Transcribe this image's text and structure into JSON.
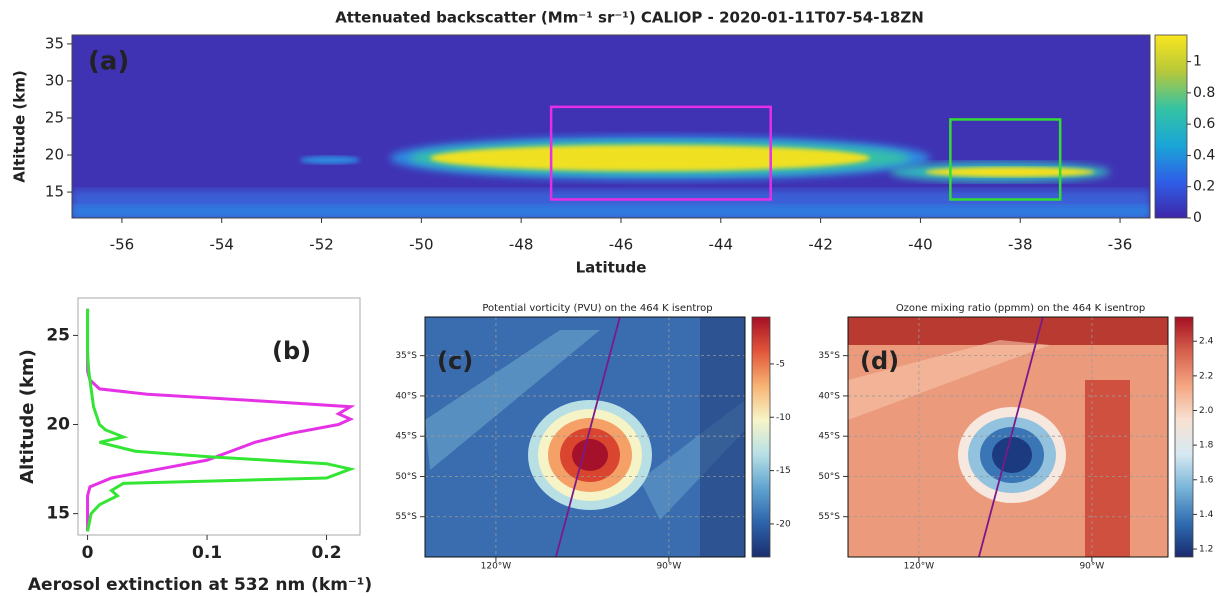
{
  "chart_data": [
    {
      "type": "heatmap",
      "label": "(a)",
      "title": "Attenuated backscatter (Mm⁻¹ sr⁻¹) CALIOP - 2020-01-11T07-54-18ZN",
      "xlabel": "Latitude",
      "ylabel": "Altitude (km)",
      "xlim": [
        -57,
        -35.4
      ],
      "xticks": [
        -56,
        -54,
        -52,
        -50,
        -48,
        -46,
        -44,
        -42,
        -40,
        -38,
        -36
      ],
      "ylim": [
        11.5,
        36.2
      ],
      "yticks": [
        15,
        20,
        25,
        30,
        35
      ],
      "colorbar": {
        "lim": [
          0,
          1.17
        ],
        "ticks": [
          0,
          0.2,
          0.4,
          0.6,
          0.8,
          1
        ],
        "colors": [
          "#3e26a8",
          "#2f5fe8",
          "#1aa6d6",
          "#35c3a3",
          "#b7c83a",
          "#f9e61f"
        ]
      },
      "boxes": [
        {
          "color": "#e62ee6",
          "xlim": [
            -47.4,
            -43
          ],
          "ylim": [
            14,
            26.5
          ]
        },
        {
          "color": "#33dd33",
          "xlim": [
            -39.4,
            -37.2
          ],
          "ylim": [
            14,
            24.8
          ]
        }
      ]
    },
    {
      "type": "line",
      "label": "(b)",
      "xlabel": "Aerosol extinction at 532 nm (km⁻¹)",
      "ylabel": "Altitude (km)",
      "xlim": [
        -0.008,
        0.228
      ],
      "xticks": [
        0,
        0.1,
        0.2
      ],
      "ylim": [
        13.8,
        27.1
      ],
      "yticks": [
        15,
        20,
        25
      ],
      "series": [
        {
          "color": "#e632e6",
          "y": [
            14,
            16,
            16.5,
            17,
            17.5,
            18,
            18.5,
            19,
            19.5,
            20,
            20.3,
            20.6,
            21,
            21.3,
            21.7,
            22,
            22.5,
            23,
            26.5
          ],
          "values": [
            0,
            0,
            0.002,
            0.02,
            0.06,
            0.1,
            0.12,
            0.14,
            0.17,
            0.21,
            0.22,
            0.21,
            0.22,
            0.15,
            0.05,
            0.01,
            0.002,
            0,
            0
          ]
        },
        {
          "color": "#33e633",
          "y": [
            14,
            15,
            15.5,
            16,
            16.3,
            16.7,
            17,
            17.5,
            17.8,
            18.2,
            18.5,
            19,
            19.3,
            19.7,
            20,
            21,
            22,
            23,
            24,
            26.5
          ],
          "values": [
            0,
            0.003,
            0.01,
            0.025,
            0.02,
            0.03,
            0.2,
            0.22,
            0.2,
            0.1,
            0.04,
            0.01,
            0.03,
            0.015,
            0.01,
            0.005,
            0.003,
            0.001,
            0,
            0
          ]
        }
      ]
    },
    {
      "type": "map",
      "label": "(c)",
      "title": "Potential vorticity (PVU) on the 464 K isentrop",
      "grid": true,
      "xlim": [
        -132.3,
        -76.8
      ],
      "xticks": [
        {
          "value": -120,
          "label": "120°W"
        },
        {
          "value": -90,
          "label": "90°W"
        }
      ],
      "ylim": [
        -60,
        -30.2
      ],
      "yticks": [
        {
          "value": -35,
          "label": "35°S"
        },
        {
          "value": -40,
          "label": "40°S"
        },
        {
          "value": -45,
          "label": "45°S"
        },
        {
          "value": -50,
          "label": "50°S"
        },
        {
          "value": -55,
          "label": "55°S"
        }
      ],
      "colorbar": {
        "lim": [
          -23.1,
          -0.6
        ],
        "ticks": [
          -5,
          -10,
          -15,
          -20
        ],
        "colors": [
          "#1a2e6e",
          "#2e63aa",
          "#5fa3cf",
          "#b8e0e6",
          "#f7f5c8",
          "#f7b273",
          "#e2563a",
          "#a50f26"
        ]
      },
      "track": {
        "color": "#7a1a8a",
        "x": [
          -109.6,
          -98.5
        ],
        "y": [
          -60,
          -30.2
        ]
      }
    },
    {
      "type": "map",
      "label": "(d)",
      "title": "Ozone mixing ratio (ppmm) on the 464 K isentrop",
      "grid": true,
      "xlim": [
        -132.3,
        -76.8
      ],
      "xticks": [
        {
          "value": -120,
          "label": "120°W"
        },
        {
          "value": -90,
          "label": "90°W"
        }
      ],
      "ylim": [
        -60,
        -30.2
      ],
      "yticks": [
        {
          "value": -35,
          "label": "35°S"
        },
        {
          "value": -40,
          "label": "40°S"
        },
        {
          "value": -45,
          "label": "45°S"
        },
        {
          "value": -50,
          "label": "50°S"
        },
        {
          "value": -55,
          "label": "55°S"
        }
      ],
      "colorbar": {
        "lim": [
          1.154,
          2.54
        ],
        "ticks": [
          1.2,
          1.4,
          1.6,
          1.8,
          {
            "value": 2,
            "label": "2.0"
          },
          2.2,
          2.4
        ],
        "colors": [
          "#1a2a6c",
          "#2f6db3",
          "#78b4d8",
          "#d6e9f2",
          "#f8e2d3",
          "#f4a582",
          "#d6604d",
          "#a50f22"
        ]
      },
      "track": {
        "color": "#7a1a8a",
        "x": [
          -109.6,
          -98.5
        ],
        "y": [
          -60,
          -30.2
        ]
      }
    }
  ]
}
